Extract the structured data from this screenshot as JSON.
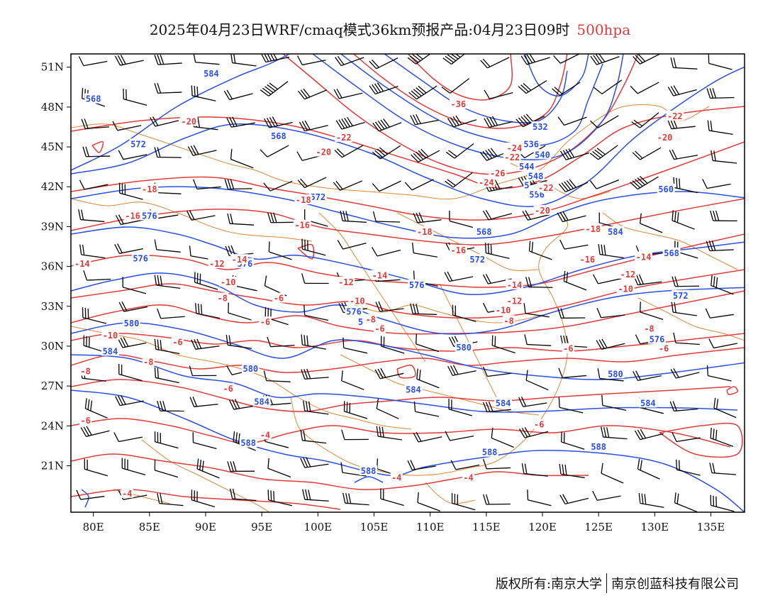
{
  "title": {
    "main": "2025年04月23日WRF/cmaq模式36km预报产品:04月23日09时",
    "level": "500hpa"
  },
  "footer": {
    "left": "版权所有:南京大学",
    "right": "南京创蓝科技有限公司"
  },
  "colors": {
    "height_contour": "#2b4fe0",
    "temperature_contour": "#e03b3b",
    "border": "#d8893a",
    "wind_barb": "#000000",
    "level_text": "#e03b3b"
  },
  "axes": {
    "lon_range": [
      78,
      138
    ],
    "lat_range": [
      17.5,
      52
    ],
    "lon_ticks": [
      80,
      85,
      90,
      95,
      100,
      105,
      110,
      115,
      120,
      125,
      130,
      135
    ],
    "lon_labels": [
      "80E",
      "85E",
      "90E",
      "95E",
      "100E",
      "105E",
      "110E",
      "115E",
      "120E",
      "125E",
      "130E",
      "135E"
    ],
    "lat_ticks": [
      21,
      24,
      27,
      30,
      33,
      36,
      39,
      42,
      45,
      48,
      51
    ],
    "lat_labels": [
      "21N",
      "24N",
      "27N",
      "30N",
      "33N",
      "36N",
      "39N",
      "42N",
      "45N",
      "48N",
      "51N"
    ]
  },
  "height_labels": [
    {
      "text": "584",
      "lon": 90.5,
      "lat": 50.5
    },
    {
      "text": "568",
      "lon": 80.0,
      "lat": 48.6
    },
    {
      "text": "532",
      "lon": 119.8,
      "lat": 46.5
    },
    {
      "text": "568",
      "lon": 96.5,
      "lat": 45.8
    },
    {
      "text": "572",
      "lon": 84.0,
      "lat": 45.2
    },
    {
      "text": "536",
      "lon": 119.0,
      "lat": 45.2
    },
    {
      "text": "540",
      "lon": 120.0,
      "lat": 44.4
    },
    {
      "text": "544",
      "lon": 118.6,
      "lat": 43.5
    },
    {
      "text": "548",
      "lon": 119.4,
      "lat": 42.8
    },
    {
      "text": "5",
      "lon": 118.6,
      "lat": 42.1
    },
    {
      "text": "556",
      "lon": 119.5,
      "lat": 41.4
    },
    {
      "text": "560",
      "lon": 131.0,
      "lat": 41.8
    },
    {
      "text": "572",
      "lon": 100.0,
      "lat": 41.2
    },
    {
      "text": "576",
      "lon": 85.0,
      "lat": 39.8
    },
    {
      "text": "568",
      "lon": 114.8,
      "lat": 38.6
    },
    {
      "text": "584",
      "lon": 126.5,
      "lat": 38.6
    },
    {
      "text": "568",
      "lon": 131.5,
      "lat": 37.0
    },
    {
      "text": "572",
      "lon": 114.2,
      "lat": 36.5
    },
    {
      "text": "576",
      "lon": 84.2,
      "lat": 36.6
    },
    {
      "text": "576",
      "lon": 93.5,
      "lat": 36.2
    },
    {
      "text": "576",
      "lon": 108.8,
      "lat": 34.6
    },
    {
      "text": "572",
      "lon": 132.3,
      "lat": 33.8
    },
    {
      "text": "576",
      "lon": 103.2,
      "lat": 32.6
    },
    {
      "text": "5",
      "lon": 103.8,
      "lat": 31.8
    },
    {
      "text": "580",
      "lon": 83.4,
      "lat": 31.7
    },
    {
      "text": "580",
      "lon": 113.0,
      "lat": 29.9
    },
    {
      "text": "576",
      "lon": 130.2,
      "lat": 30.5
    },
    {
      "text": "584",
      "lon": 81.5,
      "lat": 29.6
    },
    {
      "text": "580",
      "lon": 94.0,
      "lat": 28.3
    },
    {
      "text": "580",
      "lon": 126.5,
      "lat": 27.9
    },
    {
      "text": "584",
      "lon": 108.5,
      "lat": 26.7
    },
    {
      "text": "584",
      "lon": 95.0,
      "lat": 25.8
    },
    {
      "text": "584",
      "lon": 116.5,
      "lat": 25.7
    },
    {
      "text": "584",
      "lon": 129.4,
      "lat": 25.7
    },
    {
      "text": "588",
      "lon": 93.8,
      "lat": 22.7
    },
    {
      "text": "588",
      "lon": 125.0,
      "lat": 22.4
    },
    {
      "text": "588",
      "lon": 115.3,
      "lat": 22.0
    },
    {
      "text": "588",
      "lon": 104.5,
      "lat": 20.6
    }
  ],
  "temperature_labels": [
    {
      "text": "-36",
      "lon": 112.5,
      "lat": 48.2
    },
    {
      "text": "-20",
      "lon": 88.5,
      "lat": 46.9
    },
    {
      "text": "-22",
      "lon": 131.8,
      "lat": 47.3
    },
    {
      "text": "-22",
      "lon": 102.3,
      "lat": 45.7
    },
    {
      "text": "-20",
      "lon": 130.9,
      "lat": 45.7
    },
    {
      "text": "-20",
      "lon": 100.5,
      "lat": 44.6
    },
    {
      "text": "-24",
      "lon": 117.5,
      "lat": 44.9
    },
    {
      "text": "-22",
      "lon": 117.3,
      "lat": 44.2
    },
    {
      "text": "-26",
      "lon": 116.0,
      "lat": 43.0
    },
    {
      "text": "-24",
      "lon": 115.0,
      "lat": 42.3
    },
    {
      "text": "-22",
      "lon": 120.3,
      "lat": 41.9
    },
    {
      "text": "-18",
      "lon": 85.0,
      "lat": 41.8
    },
    {
      "text": "-20",
      "lon": 120.0,
      "lat": 40.2
    },
    {
      "text": "-18",
      "lon": 98.7,
      "lat": 41.0
    },
    {
      "text": "-16",
      "lon": 83.5,
      "lat": 39.8
    },
    {
      "text": "-16",
      "lon": 98.6,
      "lat": 39.1
    },
    {
      "text": "-18",
      "lon": 109.5,
      "lat": 38.6
    },
    {
      "text": "-18",
      "lon": 124.5,
      "lat": 38.8
    },
    {
      "text": "-16",
      "lon": 112.5,
      "lat": 37.2
    },
    {
      "text": "-16",
      "lon": 124.0,
      "lat": 36.5
    },
    {
      "text": "-14",
      "lon": 129.0,
      "lat": 36.7
    },
    {
      "text": "-14",
      "lon": 79.0,
      "lat": 36.2
    },
    {
      "text": "-12",
      "lon": 91.0,
      "lat": 36.2
    },
    {
      "text": "-14",
      "lon": 93.0,
      "lat": 36.5
    },
    {
      "text": "-14",
      "lon": 105.5,
      "lat": 35.3
    },
    {
      "text": "-12",
      "lon": 102.5,
      "lat": 34.8
    },
    {
      "text": "-12",
      "lon": 127.6,
      "lat": 35.4
    },
    {
      "text": "-10",
      "lon": 92.0,
      "lat": 34.8
    },
    {
      "text": "-14",
      "lon": 117.5,
      "lat": 34.6
    },
    {
      "text": "-10",
      "lon": 127.4,
      "lat": 34.3
    },
    {
      "text": "-8",
      "lon": 91.5,
      "lat": 33.6
    },
    {
      "text": "-6",
      "lon": 96.5,
      "lat": 33.6
    },
    {
      "text": "-10",
      "lon": 103.5,
      "lat": 33.4
    },
    {
      "text": "-12",
      "lon": 117.5,
      "lat": 33.4
    },
    {
      "text": "-10",
      "lon": 116.5,
      "lat": 32.7
    },
    {
      "text": "-8",
      "lon": 104.7,
      "lat": 32.0
    },
    {
      "text": "-8",
      "lon": 117.0,
      "lat": 31.9
    },
    {
      "text": "-6",
      "lon": 95.3,
      "lat": 31.8
    },
    {
      "text": "-6",
      "lon": 105.5,
      "lat": 31.3
    },
    {
      "text": "-8",
      "lon": 129.5,
      "lat": 31.3
    },
    {
      "text": "-10",
      "lon": 81.5,
      "lat": 30.8
    },
    {
      "text": "-6",
      "lon": 87.5,
      "lat": 30.3
    },
    {
      "text": "-6",
      "lon": 130.8,
      "lat": 29.8
    },
    {
      "text": "-6",
      "lon": 122.3,
      "lat": 29.8
    },
    {
      "text": "-8",
      "lon": 84.9,
      "lat": 28.8
    },
    {
      "text": "-8",
      "lon": 79.3,
      "lat": 28.1
    },
    {
      "text": "-6",
      "lon": 92.0,
      "lat": 26.8
    },
    {
      "text": "-6",
      "lon": 79.3,
      "lat": 24.4
    },
    {
      "text": "-6",
      "lon": 119.7,
      "lat": 24.1
    },
    {
      "text": "-4",
      "lon": 95.3,
      "lat": 23.3
    },
    {
      "text": "-4",
      "lon": 107.0,
      "lat": 20.1
    },
    {
      "text": "-4",
      "lon": 113.4,
      "lat": 20.1
    },
    {
      "text": "-4",
      "lon": 83.0,
      "lat": 18.9
    }
  ]
}
